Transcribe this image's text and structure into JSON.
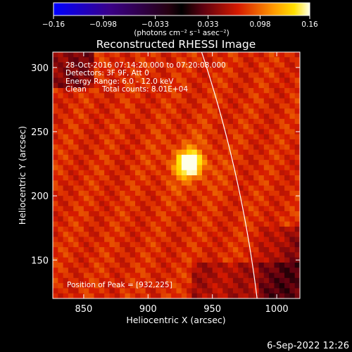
{
  "chart_data": {
    "type": "heatmap",
    "title": "Reconstructed RHESSI Image",
    "xlabel": "Heliocentric X (arcsec)",
    "ylabel": "Heliocentric Y (arcsec)",
    "xlim": [
      826,
      1018
    ],
    "ylim": [
      120,
      312
    ],
    "x_ticks": [
      850,
      900,
      950,
      1000
    ],
    "y_ticks": [
      150,
      200,
      250,
      300
    ],
    "x_tick_labels": [
      "850",
      "900",
      "950",
      "1000"
    ],
    "y_tick_labels": [
      "150",
      "200",
      "250",
      "300"
    ],
    "colorbar": {
      "min": -0.16,
      "max": 0.16,
      "ticks": [
        -0.16,
        -0.098,
        -0.033,
        0.033,
        0.098,
        0.16
      ],
      "tick_labels": [
        "−0.16",
        "−0.098",
        "−0.033",
        "0.033",
        "0.098",
        "0.16"
      ],
      "unit_label": "(photons cm⁻² s⁻¹ asec⁻²)"
    },
    "annotations": {
      "time_range": "28-Oct-2016 07:14:20.000 to 07:20:08.000",
      "detectors": "Detectors: 3F 9F, Att 0",
      "energy": "Energy Range: 6.0 - 12.0 keV",
      "clean": "Clean",
      "total_counts": "Total counts: 8.01E+04",
      "peak_label": "Position of Peak = [932,225]"
    },
    "peak": {
      "x": 932,
      "y": 225
    },
    "footer_date": "6-Sep-2022 12:26",
    "limb_color": "#ffffff"
  }
}
